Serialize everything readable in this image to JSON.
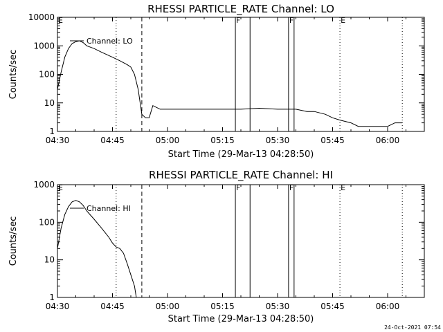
{
  "footer": {
    "timestamp": "24-Oct-2021 07:54"
  },
  "chart_data": [
    {
      "type": "line",
      "title": "RHESSI PARTICLE_RATE Channel: LO",
      "xlabel": "Start Time (29-Mar-13 04:28:50)",
      "ylabel": "Counts/sec",
      "xlim": [
        "04:30",
        "06:10"
      ],
      "ylim": [
        1,
        10000
      ],
      "yscale": "log",
      "x_ticks": [
        "04:30",
        "04:45",
        "05:00",
        "05:15",
        "05:30",
        "05:45",
        "06:00"
      ],
      "y_ticks": [
        "1",
        "10",
        "100",
        "1000",
        "10000"
      ],
      "legend": {
        "label": "Channel: LO",
        "placement": "top-left"
      },
      "markers": [
        {
          "time": "04:30",
          "label": "E",
          "style": "none"
        },
        {
          "time": "04:46",
          "label": "",
          "style": "dotted"
        },
        {
          "time": "04:53",
          "label": "",
          "style": "dashed"
        },
        {
          "time": "05:18.5",
          "label": "F",
          "style": "solid"
        },
        {
          "time": "05:22.5",
          "label": "",
          "style": "solid"
        },
        {
          "time": "05:33",
          "label": "F",
          "style": "solid"
        },
        {
          "time": "05:34.5",
          "label": "",
          "style": "solid"
        },
        {
          "time": "05:47",
          "label": "E",
          "style": "dotted"
        },
        {
          "time": "06:04",
          "label": "",
          "style": "dotted"
        }
      ],
      "series": [
        {
          "name": "Channel: LO",
          "x": [
            "04:30",
            "04:31",
            "04:32",
            "04:33",
            "04:34",
            "04:35",
            "04:36",
            "04:37",
            "04:38",
            "04:40",
            "04:42",
            "04:45",
            "04:47",
            "04:49",
            "04:50",
            "04:51",
            "04:52",
            "04:53",
            "04:54",
            "04:55",
            "04:56",
            "04:58",
            "05:00",
            "05:05",
            "05:10",
            "05:15",
            "05:20",
            "05:25",
            "05:30",
            "05:35",
            "05:38",
            "05:40",
            "05:43",
            "05:45",
            "05:47",
            "05:50",
            "05:52",
            "05:55",
            "05:57",
            "06:00",
            "06:02",
            "06:04"
          ],
          "y": [
            30,
            120,
            400,
            800,
            1200,
            1400,
            1500,
            1300,
            1000,
            800,
            600,
            400,
            300,
            220,
            180,
            100,
            30,
            4,
            3,
            3,
            8,
            6,
            6,
            6,
            6,
            6,
            6,
            6.5,
            6,
            6,
            5,
            5,
            4,
            3,
            2.5,
            2,
            1.5,
            1.5,
            1.5,
            1.5,
            2,
            2
          ]
        }
      ]
    },
    {
      "type": "line",
      "title": "RHESSI PARTICLE_RATE Channel: HI",
      "xlabel": "Start Time (29-Mar-13 04:28:50)",
      "ylabel": "Counts/sec",
      "xlim": [
        "04:30",
        "06:10"
      ],
      "ylim": [
        1,
        1000
      ],
      "yscale": "log",
      "x_ticks": [
        "04:30",
        "04:45",
        "05:00",
        "05:15",
        "05:30",
        "05:45",
        "06:00"
      ],
      "y_ticks": [
        "1",
        "10",
        "100",
        "1000"
      ],
      "legend": {
        "label": "Channel: HI",
        "placement": "top-left"
      },
      "markers": [
        {
          "time": "04:30",
          "label": "E",
          "style": "none"
        },
        {
          "time": "04:46",
          "label": "",
          "style": "dotted"
        },
        {
          "time": "04:53",
          "label": "",
          "style": "dashed"
        },
        {
          "time": "05:18.5",
          "label": "F",
          "style": "solid"
        },
        {
          "time": "05:22.5",
          "label": "",
          "style": "solid"
        },
        {
          "time": "05:33",
          "label": "F",
          "style": "solid"
        },
        {
          "time": "05:34.5",
          "label": "",
          "style": "solid"
        },
        {
          "time": "05:47",
          "label": "E",
          "style": "dotted"
        },
        {
          "time": "06:04",
          "label": "",
          "style": "dotted"
        }
      ],
      "series": [
        {
          "name": "Channel: HI",
          "x": [
            "04:30",
            "04:31",
            "04:32",
            "04:33",
            "04:34",
            "04:35",
            "04:36",
            "04:37",
            "04:38",
            "04:40",
            "04:42",
            "04:44",
            "04:45",
            "04:46",
            "04:47",
            "04:48",
            "04:49",
            "04:50",
            "04:51",
            "04:51.5"
          ],
          "y": [
            20,
            70,
            160,
            260,
            350,
            380,
            350,
            280,
            200,
            120,
            70,
            40,
            28,
            22,
            20,
            15,
            8,
            4,
            2,
            1
          ]
        }
      ]
    }
  ]
}
